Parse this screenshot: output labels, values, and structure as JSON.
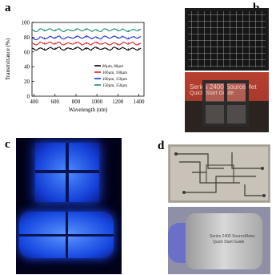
{
  "panels": {
    "a": "a",
    "b": "b",
    "c": "c",
    "d": "d"
  },
  "chart_data": {
    "type": "line",
    "ylabel": "Transmittance (%)",
    "xlabel": "Wavelength (nm)",
    "xlim": [
      380,
      1450
    ],
    "ylim": [
      0,
      100
    ],
    "xticks": [
      400,
      600,
      800,
      1000,
      1200,
      1400
    ],
    "yticks": [
      0,
      20,
      40,
      60,
      80,
      100
    ],
    "legend_position": "lower-right",
    "series": [
      {
        "name": "80µm, 80µm",
        "color": "#000000",
        "x": [
          400,
          500,
          600,
          700,
          800,
          900,
          1000,
          1100,
          1200,
          1300,
          1400
        ],
        "y": [
          64,
          64,
          65,
          64,
          65,
          64,
          65,
          64,
          65,
          64,
          64
        ]
      },
      {
        "name": "100µm, 100µm",
        "color": "#e02020",
        "x": [
          400,
          500,
          600,
          700,
          800,
          900,
          1000,
          1100,
          1200,
          1300,
          1400
        ],
        "y": [
          71,
          72,
          72,
          71,
          72,
          71,
          72,
          71,
          71,
          72,
          71
        ]
      },
      {
        "name": "100µm, 150µm",
        "color": "#2030d0",
        "x": [
          400,
          500,
          600,
          700,
          800,
          900,
          1000,
          1100,
          1200,
          1300,
          1400
        ],
        "y": [
          78,
          79,
          80,
          79,
          80,
          80,
          79,
          80,
          80,
          79,
          80
        ]
      },
      {
        "name": "150µm, 150µm",
        "color": "#1a8c7a",
        "x": [
          400,
          500,
          600,
          700,
          800,
          900,
          1000,
          1100,
          1200,
          1300,
          1400
        ],
        "y": [
          89,
          90,
          90,
          89,
          90,
          90,
          89,
          90,
          90,
          89,
          90
        ]
      }
    ]
  },
  "photo_b_text": "Series 2400 SourceMet",
  "photo_b_text2": "Quick Start Guide",
  "photo_d_text": "Series 2400 SourceMeter",
  "photo_d_text2": "Quick Start Guide"
}
